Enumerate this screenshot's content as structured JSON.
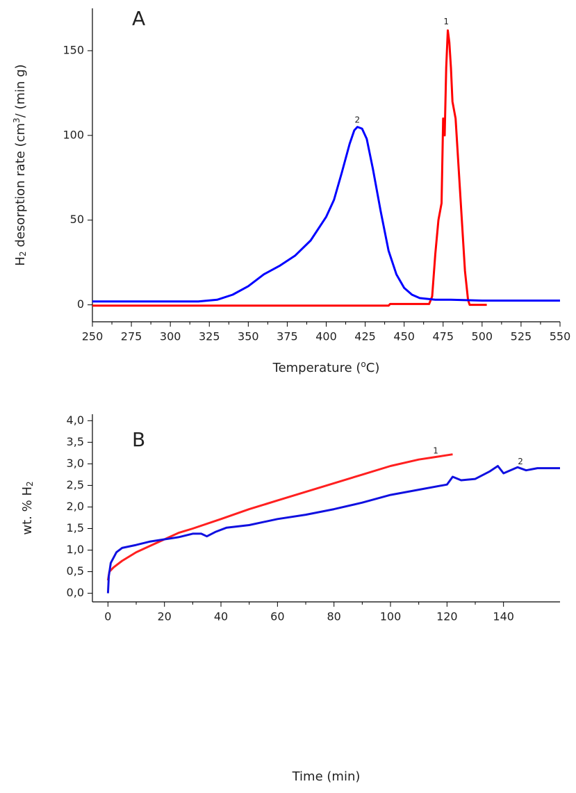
{
  "chart_data": [
    {
      "type": "line",
      "panel_label": "A",
      "xlabel": [
        "Temperature (",
        "o",
        "C)"
      ],
      "ylabel": [
        "H",
        "2",
        " desorption rate (cm",
        "3",
        "/ (min g)"
      ],
      "xlim": [
        250,
        550
      ],
      "xticks": [
        250,
        275,
        300,
        325,
        350,
        375,
        400,
        425,
        450,
        475,
        500,
        525,
        550
      ],
      "ylim": [
        -10,
        175
      ],
      "yticks": [
        0,
        50,
        100,
        150
      ],
      "series": [
        {
          "color": "#ff0000",
          "x": [
            250,
            300,
            350,
            400,
            440,
            441,
            466,
            468,
            470,
            472,
            474,
            475,
            476,
            477,
            478,
            479,
            480,
            481,
            483,
            485,
            487,
            489,
            491,
            492,
            503
          ],
          "values": [
            -0.5,
            -0.5,
            -0.5,
            -0.5,
            -0.5,
            0.5,
            0.5,
            5,
            30,
            50,
            60,
            110,
            100,
            140,
            162,
            155,
            140,
            120,
            110,
            80,
            50,
            20,
            3,
            0,
            0
          ]
        },
        {
          "color": "#0000ff",
          "x": [
            250,
            318,
            330,
            340,
            350,
            360,
            370,
            380,
            390,
            400,
            405,
            410,
            415,
            418,
            420,
            423,
            426,
            430,
            435,
            440,
            445,
            450,
            455,
            460,
            470,
            480,
            500,
            550
          ],
          "values": [
            2,
            2,
            3,
            6,
            11,
            18,
            23,
            29,
            38,
            52,
            62,
            78,
            95,
            103,
            105,
            104,
            98,
            80,
            55,
            32,
            18,
            10,
            6,
            4,
            3,
            3,
            2.5,
            2.5
          ]
        }
      ],
      "annotations": [
        {
          "text": "1",
          "x": 477,
          "y": 167
        },
        {
          "text": "2",
          "x": 420,
          "y": 109
        }
      ]
    },
    {
      "type": "line",
      "panel_label": "B",
      "xlabel": [
        "Time (min)"
      ],
      "ylabel": [
        "wt. % H",
        "2"
      ],
      "xlim": [
        -5.5,
        160
      ],
      "xticks": [
        0,
        20,
        40,
        60,
        80,
        100,
        120,
        140
      ],
      "ylim": [
        -0.2,
        4.15
      ],
      "yticks": [
        {
          "value": 0,
          "label": "0,0"
        },
        {
          "value": 0.5,
          "label": "0,5"
        },
        {
          "value": 1,
          "label": "1,0"
        },
        {
          "value": 1.5,
          "label": "1,5"
        },
        {
          "value": 2,
          "label": "2,0"
        },
        {
          "value": 2.5,
          "label": "2,5"
        },
        {
          "value": 3,
          "label": "3,0"
        },
        {
          "value": 3.5,
          "label": "3,5"
        },
        {
          "value": 4,
          "label": "4,0"
        }
      ],
      "series": [
        {
          "color": "#ff2020",
          "x": [
            0,
            0.5,
            2,
            5,
            10,
            15,
            20,
            25,
            30,
            40,
            50,
            60,
            70,
            80,
            90,
            100,
            110,
            115,
            122
          ],
          "values": [
            0.3,
            0.5,
            0.6,
            0.75,
            0.95,
            1.1,
            1.25,
            1.4,
            1.5,
            1.72,
            1.95,
            2.15,
            2.35,
            2.55,
            2.75,
            2.95,
            3.1,
            3.15,
            3.22
          ]
        },
        {
          "color": "#1010e0",
          "x": [
            0,
            0.3,
            1,
            3,
            5,
            10,
            15,
            20,
            25,
            30,
            33,
            35,
            38,
            42,
            50,
            60,
            70,
            80,
            90,
            100,
            110,
            120,
            122,
            125,
            130,
            135,
            138,
            140,
            145,
            148,
            152,
            160
          ],
          "values": [
            0,
            0.4,
            0.7,
            0.95,
            1.05,
            1.12,
            1.2,
            1.25,
            1.3,
            1.38,
            1.38,
            1.32,
            1.42,
            1.52,
            1.58,
            1.72,
            1.82,
            1.95,
            2.1,
            2.28,
            2.4,
            2.52,
            2.7,
            2.62,
            2.65,
            2.82,
            2.95,
            2.78,
            2.92,
            2.85,
            2.9,
            2.9
          ]
        }
      ],
      "annotations": [
        {
          "text": "1",
          "x": 116,
          "y": 3.3
        },
        {
          "text": "2",
          "x": 146,
          "y": 3.05
        }
      ]
    }
  ]
}
